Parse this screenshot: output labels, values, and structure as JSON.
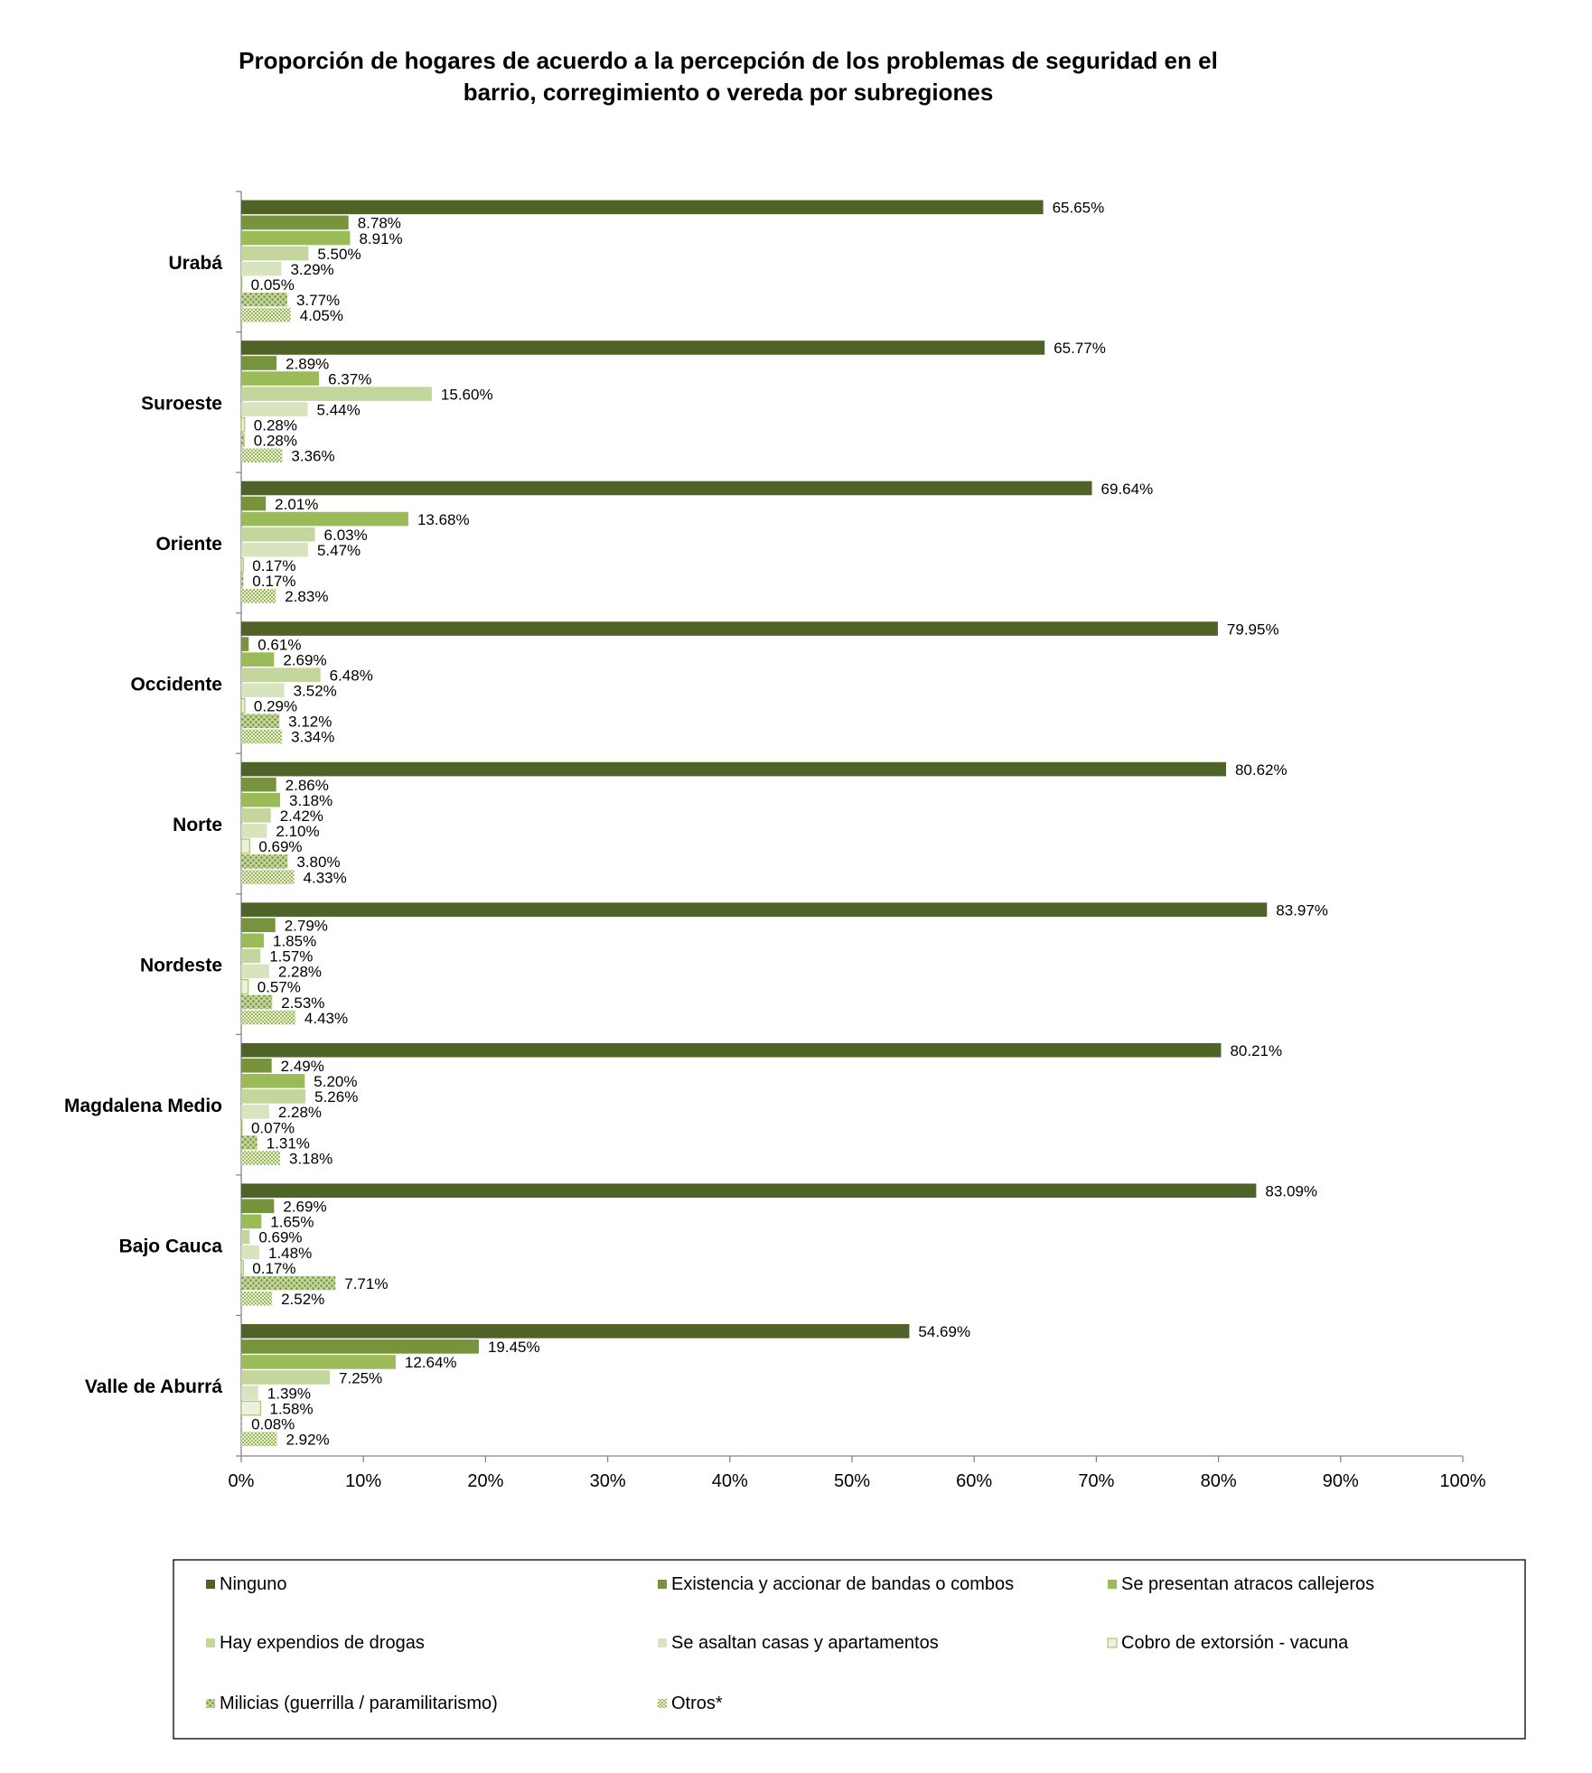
{
  "chart_data": {
    "type": "bar",
    "orientation": "horizontal",
    "title": "Proporción de hogares de acuerdo a la percepción de los problemas  de seguridad en el barrio, corregimiento o vereda por subregiones",
    "title_lines": [
      "Proporción de hogares de acuerdo a la percepción de los problemas  de seguridad en el",
      "barrio, corregimiento o vereda por subregiones"
    ],
    "categories": [
      "Urabá",
      "Suroeste",
      "Oriente",
      "Occidente",
      "Norte",
      "Nordeste",
      "Magdalena Medio",
      "Bajo Cauca",
      "Valle de Aburrá"
    ],
    "series": [
      {
        "name": "Ninguno",
        "color": "#4f6228",
        "pattern": "solid",
        "values": [
          65.65,
          65.77,
          69.64,
          79.95,
          80.62,
          83.97,
          80.21,
          83.09,
          54.69
        ],
        "labels": [
          "65.65%",
          "65.77%",
          "69.64%",
          "79.95%",
          "80.62%",
          "83.97%",
          "80.21%",
          "83.09%",
          "54.69%"
        ]
      },
      {
        "name": "Existencia y accionar de bandas o combos",
        "color": "#77933c",
        "pattern": "solid",
        "values": [
          8.78,
          2.89,
          2.01,
          0.61,
          2.86,
          2.79,
          2.49,
          2.69,
          19.45
        ],
        "labels": [
          "8.78%",
          "2.89%",
          "2.01%",
          "0.61%",
          "2.86%",
          "2.79%",
          "2.49%",
          "2.69%",
          "19.45%"
        ]
      },
      {
        "name": "Se presentan atracos callejeros",
        "color": "#9bbb59",
        "pattern": "solid",
        "values": [
          8.91,
          6.37,
          13.68,
          2.69,
          3.18,
          1.85,
          5.2,
          1.65,
          12.64
        ],
        "labels": [
          "8.91%",
          "6.37%",
          "13.68%",
          "2.69%",
          "3.18%",
          "1.85%",
          "5.20%",
          "1.65%",
          "12.64%"
        ]
      },
      {
        "name": "Hay expendios de drogas",
        "color": "#c3d69b",
        "pattern": "solid",
        "values": [
          5.5,
          15.6,
          6.03,
          6.48,
          2.42,
          1.57,
          5.26,
          0.69,
          7.25
        ],
        "labels": [
          "5.50%",
          "15.60%",
          "6.03%",
          "6.48%",
          "2.42%",
          "1.57%",
          "5.26%",
          "0.69%",
          "7.25%"
        ]
      },
      {
        "name": "Se asaltan casas y apartamentos",
        "color": "#d7e4bd",
        "pattern": "solid",
        "values": [
          3.29,
          5.44,
          5.47,
          3.52,
          2.1,
          2.28,
          2.28,
          1.48,
          1.39
        ],
        "labels": [
          "3.29%",
          "5.44%",
          "5.47%",
          "3.52%",
          "2.10%",
          "2.28%",
          "2.28%",
          "1.48%",
          "1.39%"
        ]
      },
      {
        "name": "Cobro de extorsión - vacuna",
        "color": "#ebf1de",
        "pattern": "outline",
        "values": [
          0.05,
          0.28,
          0.17,
          0.29,
          0.69,
          0.57,
          0.07,
          0.17,
          1.58
        ],
        "labels": [
          "0.05%",
          "0.28%",
          "0.17%",
          "0.29%",
          "0.69%",
          "0.57%",
          "0.07%",
          "0.17%",
          "1.58%"
        ]
      },
      {
        "name": "Milicias (guerrilla / paramilitarismo)",
        "color": "#9bbb59",
        "pattern": "dots",
        "values": [
          3.77,
          0.28,
          0.17,
          3.12,
          3.8,
          2.53,
          1.31,
          7.71,
          0.08
        ],
        "labels": [
          "3.77%",
          "0.28%",
          "0.17%",
          "3.12%",
          "3.80%",
          "2.53%",
          "1.31%",
          "7.71%",
          "0.08%"
        ]
      },
      {
        "name": "Otros*",
        "color": "#c3d69b",
        "pattern": "checker",
        "values": [
          4.05,
          3.36,
          2.83,
          3.34,
          4.33,
          4.43,
          3.18,
          2.52,
          2.92
        ],
        "labels": [
          "4.05%",
          "3.36%",
          "2.83%",
          "3.34%",
          "4.33%",
          "4.43%",
          "3.18%",
          "2.52%",
          "2.92%"
        ]
      }
    ],
    "xlim": [
      0,
      100
    ],
    "x_ticks": [
      "0%",
      "10%",
      "20%",
      "30%",
      "40%",
      "50%",
      "60%",
      "70%",
      "80%",
      "90%",
      "100%"
    ],
    "xlabel": "",
    "ylabel": "",
    "grid": false,
    "legend_position": "bottom"
  }
}
